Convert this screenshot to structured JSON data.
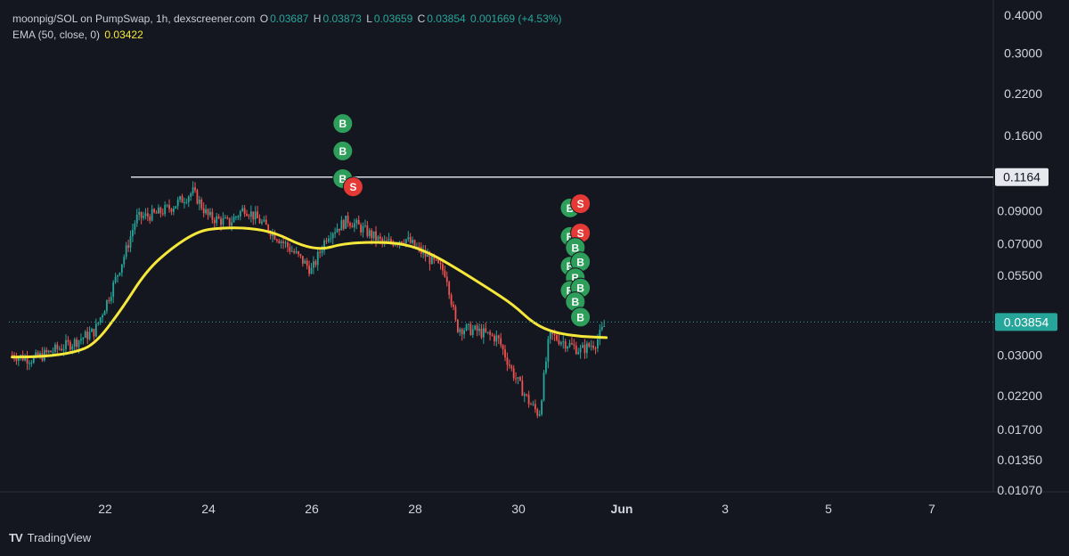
{
  "header": {
    "symbol": "moonpig/SOL on PumpSwap, 1h, dexscreener.com",
    "o_label": "O",
    "o": "0.03687",
    "h_label": "H",
    "h": "0.03873",
    "l_label": "L",
    "l": "0.03659",
    "c_label": "C",
    "c": "0.03854",
    "change": "0.001669 (+4.53%)",
    "ema_label": "EMA (50, close, 0)",
    "ema_value": "0.03422"
  },
  "brand": {
    "name": "TradingView",
    "logo": "TV"
  },
  "colors": {
    "background": "#151720",
    "up": "#26a69a",
    "down": "#ef5350",
    "ema": "#f5e83a",
    "buy_marker": "#2e9e5b",
    "sell_marker": "#e53935",
    "resistance_line": "#d8dbe2",
    "text": "#d1d4dc"
  },
  "chart_data": {
    "type": "candlestick",
    "scale": "log",
    "x_ticks": [
      "22",
      "24",
      "26",
      "28",
      "30",
      "Jun",
      "3",
      "5",
      "7"
    ],
    "y_ticks": [
      "0.4000",
      "0.3000",
      "0.2200",
      "0.1600",
      "0.09000",
      "0.07000",
      "0.05500",
      "0.03000",
      "0.02200",
      "0.01700",
      "0.01350",
      "0.01070"
    ],
    "y_tick_values": [
      0.4,
      0.3,
      0.22,
      0.16,
      0.09,
      0.07,
      0.055,
      0.03,
      0.022,
      0.017,
      0.0135,
      0.0107
    ],
    "y_range": [
      0.0107,
      0.4
    ],
    "x_range_days": [
      20.2,
      8.3
    ],
    "price_path": [
      [
        "20.2",
        0.03
      ],
      [
        "20.6",
        0.029
      ],
      [
        "21.0",
        0.031
      ],
      [
        "21.4",
        0.033
      ],
      [
        "21.8",
        0.036
      ],
      [
        "22.1",
        0.048
      ],
      [
        "22.4",
        0.066
      ],
      [
        "22.6",
        0.085
      ],
      [
        "23.0",
        0.088
      ],
      [
        "23.3",
        0.093
      ],
      [
        "23.7",
        0.104
      ],
      [
        "24.0",
        0.086
      ],
      [
        "24.4",
        0.082
      ],
      [
        "24.7",
        0.092
      ],
      [
        "25.0",
        0.083
      ],
      [
        "25.4",
        0.072
      ],
      [
        "25.8",
        0.062
      ],
      [
        "26.0",
        0.057
      ],
      [
        "26.3",
        0.075
      ],
      [
        "26.7",
        0.084
      ],
      [
        "27.0",
        0.078
      ],
      [
        "27.4",
        0.07
      ],
      [
        "27.8",
        0.073
      ],
      [
        "28.2",
        0.064
      ],
      [
        "28.6",
        0.056
      ],
      [
        "28.8",
        0.037
      ],
      [
        "29.2",
        0.036
      ],
      [
        "29.6",
        0.034
      ],
      [
        "29.9",
        0.026
      ],
      [
        "30.2",
        0.021
      ],
      [
        "30.4",
        0.019
      ],
      [
        "30.6",
        0.035
      ],
      [
        "30.9",
        0.033
      ],
      [
        "31.2",
        0.031
      ],
      [
        "31.5",
        0.033
      ],
      [
        "31.7",
        0.03854
      ]
    ],
    "ema_path": [
      [
        "20.2",
        0.0295
      ],
      [
        "20.8",
        0.0296
      ],
      [
        "21.4",
        0.0305
      ],
      [
        "21.8",
        0.0325
      ],
      [
        "22.3",
        0.042
      ],
      [
        "22.8",
        0.057
      ],
      [
        "23.3",
        0.068
      ],
      [
        "23.8",
        0.077
      ],
      [
        "24.2",
        0.079
      ],
      [
        "24.8",
        0.079
      ],
      [
        "25.3",
        0.076
      ],
      [
        "25.8",
        0.069
      ],
      [
        "26.2",
        0.067
      ],
      [
        "26.6",
        0.07
      ],
      [
        "27.2",
        0.071
      ],
      [
        "27.8",
        0.07
      ],
      [
        "28.3",
        0.065
      ],
      [
        "28.8",
        0.058
      ],
      [
        "29.4",
        0.05
      ],
      [
        "29.9",
        0.044
      ],
      [
        "30.3",
        0.038
      ],
      [
        "30.7",
        0.0355
      ],
      [
        "31.2",
        0.0345
      ],
      [
        "31.7",
        0.03422
      ]
    ],
    "resistance": {
      "value": 0.1164,
      "label": "0.1164",
      "from_day": "22.5"
    },
    "last_price": {
      "value": 0.03854,
      "label": "0.03854"
    },
    "markers": [
      {
        "type": "B",
        "day": "26.6",
        "price": 0.175
      },
      {
        "type": "B",
        "day": "26.6",
        "price": 0.142
      },
      {
        "type": "B",
        "day": "26.6",
        "price": 0.115
      },
      {
        "type": "S",
        "day": "26.8",
        "price": 0.108
      },
      {
        "type": "B",
        "day": "31.0",
        "price": 0.092
      },
      {
        "type": "S",
        "day": "31.2",
        "price": 0.095
      },
      {
        "type": "B",
        "day": "31.0",
        "price": 0.074
      },
      {
        "type": "S",
        "day": "31.2",
        "price": 0.076
      },
      {
        "type": "B",
        "day": "31.1",
        "price": 0.068
      },
      {
        "type": "B",
        "day": "31.0",
        "price": 0.059
      },
      {
        "type": "B",
        "day": "31.2",
        "price": 0.061
      },
      {
        "type": "B",
        "day": "31.1",
        "price": 0.054
      },
      {
        "type": "B",
        "day": "31.0",
        "price": 0.049
      },
      {
        "type": "B",
        "day": "31.2",
        "price": 0.05
      },
      {
        "type": "B",
        "day": "31.1",
        "price": 0.045
      },
      {
        "type": "B",
        "day": "31.2",
        "price": 0.04
      }
    ]
  }
}
